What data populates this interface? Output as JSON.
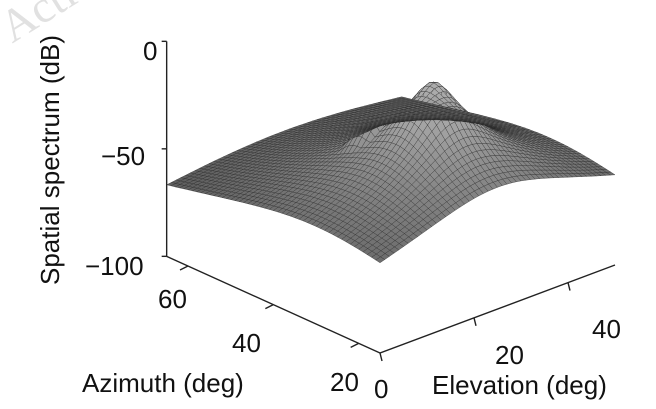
{
  "watermark": "ActiveElec",
  "chart_data": {
    "type": "surface3d",
    "title": "",
    "zlabel": "Spatial spectrum (dB)",
    "xlabel": "Elevation (deg)",
    "ylabel": "Azimuth (deg)",
    "zticks": [
      "0",
      "-50",
      "-100"
    ],
    "zticks_display": [
      "0",
      "−50",
      "−100"
    ],
    "xticks": [
      "0",
      "20",
      "40"
    ],
    "yticks": [
      "20",
      "40",
      "60"
    ],
    "zlim": [
      -100,
      0
    ],
    "xlim": [
      0,
      50
    ],
    "ylim": [
      15,
      65
    ],
    "colormap": "gray",
    "surface_color": "#1a1a1a",
    "peaks": [
      {
        "elevation": 25,
        "azimuth": 30,
        "value_db": -8
      },
      {
        "elevation": 20,
        "azimuth": 38,
        "value_db": -27
      }
    ]
  }
}
